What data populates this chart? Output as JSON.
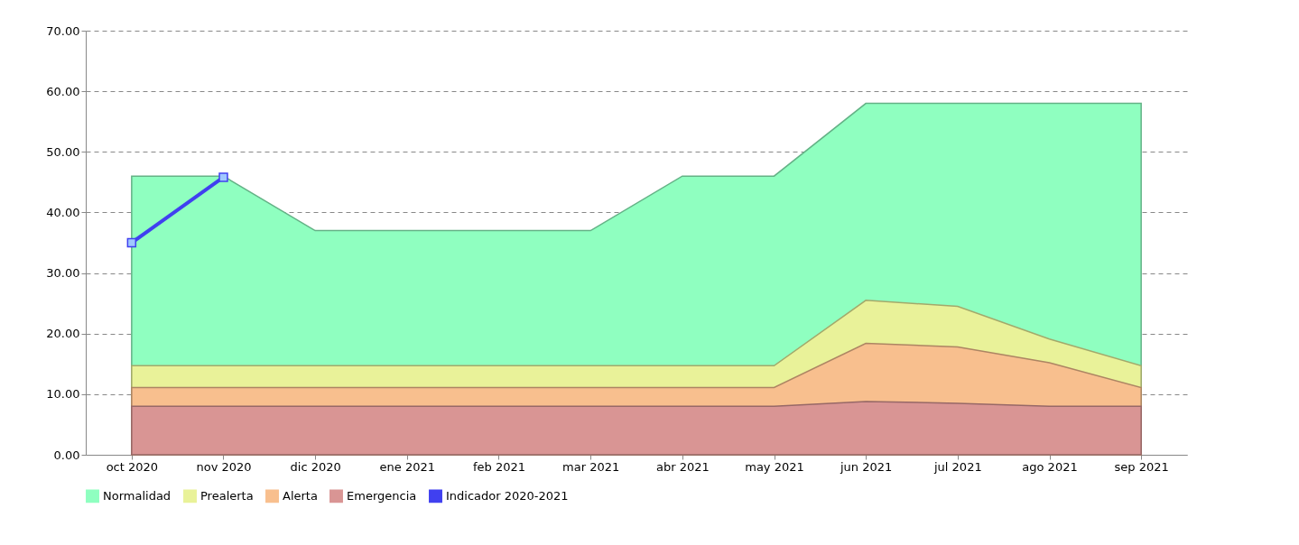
{
  "chart_data": {
    "type": "area",
    "categories": [
      "oct 2020",
      "nov 2020",
      "dic 2020",
      "ene 2021",
      "feb 2021",
      "mar 2021",
      "abr 2021",
      "may 2021",
      "jun 2021",
      "jul 2021",
      "ago 2021",
      "sep 2021"
    ],
    "series": [
      {
        "name": "Normalidad",
        "color": "#8fffc0",
        "values": [
          46,
          46,
          37,
          37,
          37,
          37,
          46,
          46,
          58,
          58,
          58,
          58
        ]
      },
      {
        "name": "Prealerta",
        "color": "#e9f299",
        "values": [
          14.7,
          14.7,
          14.7,
          14.7,
          14.7,
          14.7,
          14.7,
          14.7,
          25.5,
          24.5,
          19.1,
          14.7
        ]
      },
      {
        "name": "Alerta",
        "color": "#f8bf8e",
        "values": [
          11.1,
          11.1,
          11.1,
          11.1,
          11.1,
          11.1,
          11.1,
          11.1,
          18.4,
          17.8,
          15.2,
          11.1
        ]
      },
      {
        "name": "Emergencia",
        "color": "#d99594",
        "values": [
          8,
          8,
          8,
          8,
          8,
          8,
          8,
          8,
          8.8,
          8.5,
          8,
          8
        ]
      },
      {
        "name": "Indicador 2020-2021",
        "type": "line",
        "color": "#4040f0",
        "marker": "square",
        "values": [
          35,
          45.8,
          null,
          null,
          null,
          null,
          null,
          null,
          null,
          null,
          null,
          null
        ]
      }
    ],
    "ylim": [
      0,
      70
    ],
    "yticks": [
      {
        "value": 0,
        "label": "0.00"
      },
      {
        "value": 10,
        "label": "10.00"
      },
      {
        "value": 20,
        "label": "20.00"
      },
      {
        "value": 30,
        "label": "30.00"
      },
      {
        "value": 40,
        "label": "40.00"
      },
      {
        "value": 50,
        "label": "50.00"
      },
      {
        "value": 60,
        "label": "60.00"
      },
      {
        "value": 70,
        "label": "70.00"
      }
    ],
    "grid": "y",
    "legend": "bottom"
  }
}
